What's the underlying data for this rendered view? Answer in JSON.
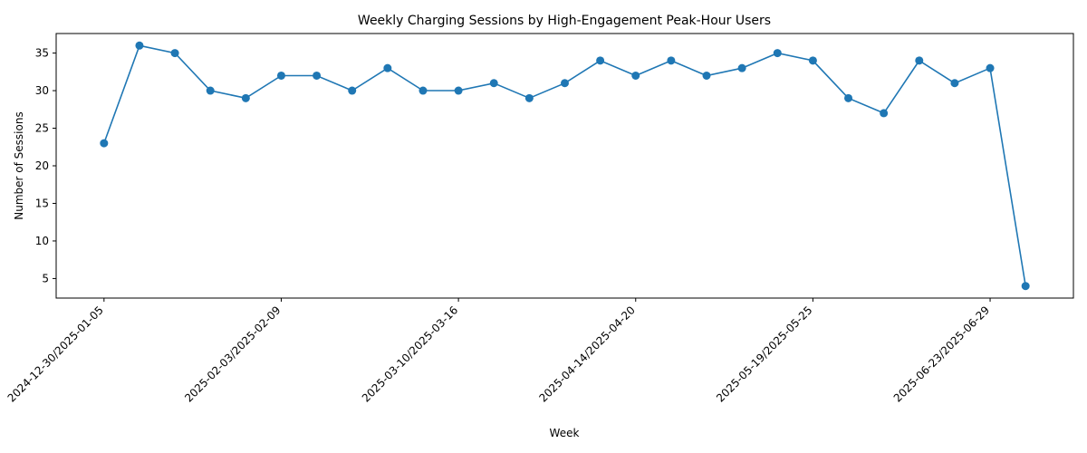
{
  "chart_data": {
    "type": "line",
    "title": "Weekly Charging Sessions by High-Engagement Peak-Hour Users",
    "xlabel": "Week",
    "ylabel": "Number of Sessions",
    "ylim": [
      2.4,
      37.6
    ],
    "yticks": [
      5,
      10,
      15,
      20,
      25,
      30,
      35
    ],
    "grid": false,
    "legend": "none",
    "color": "#1f77b4",
    "x": [
      "2024-12-30/2025-01-05",
      "2025-01-06/2025-01-12",
      "2025-01-13/2025-01-19",
      "2025-01-20/2025-01-26",
      "2025-01-27/2025-02-02",
      "2025-02-03/2025-02-09",
      "2025-02-10/2025-02-16",
      "2025-02-17/2025-02-23",
      "2025-02-24/2025-03-02",
      "2025-03-03/2025-03-09",
      "2025-03-10/2025-03-16",
      "2025-03-17/2025-03-23",
      "2025-03-24/2025-03-30",
      "2025-03-31/2025-04-06",
      "2025-04-07/2025-04-13",
      "2025-04-14/2025-04-20",
      "2025-04-21/2025-04-27",
      "2025-04-28/2025-05-04",
      "2025-05-05/2025-05-11",
      "2025-05-12/2025-05-18",
      "2025-05-19/2025-05-25",
      "2025-05-26/2025-06-01",
      "2025-06-02/2025-06-08",
      "2025-06-09/2025-06-15",
      "2025-06-16/2025-06-22",
      "2025-06-23/2025-06-29",
      "2025-06-30/2025-07-06"
    ],
    "xtick_labels": [
      "2024-12-30/2025-01-05",
      "2025-02-03/2025-02-09",
      "2025-03-10/2025-03-16",
      "2025-04-14/2025-04-20",
      "2025-05-19/2025-05-25",
      "2025-06-23/2025-06-29"
    ],
    "series": [
      {
        "values": [
          23,
          36,
          35,
          30,
          29,
          32,
          32,
          30,
          33,
          30,
          30,
          31,
          29,
          31,
          34,
          32,
          34,
          32,
          33,
          35,
          34,
          29,
          27,
          34,
          31,
          33,
          4
        ]
      }
    ]
  }
}
